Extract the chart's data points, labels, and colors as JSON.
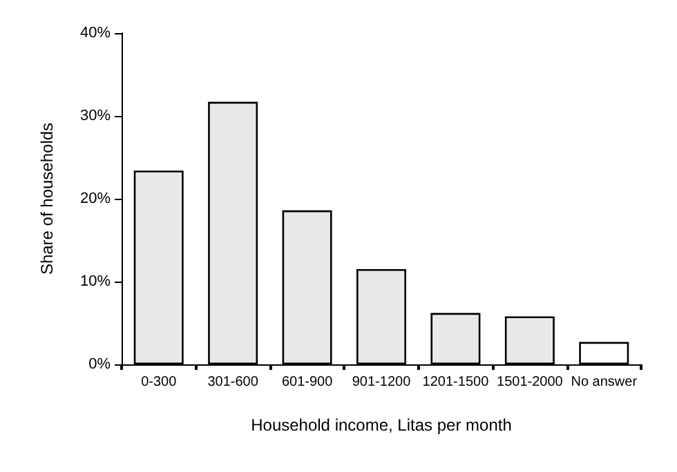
{
  "chart_data": {
    "type": "bar",
    "xlabel": "Household income, Litas per month",
    "ylabel": "Share of households",
    "categories": [
      "0-300",
      "301-600",
      "601-900",
      "901-1200",
      "1201-1500",
      "1501-2000",
      "No answer"
    ],
    "values": [
      23.4,
      31.7,
      18.6,
      11.5,
      6.2,
      5.8,
      2.7
    ],
    "colors": [
      "#e8e8e8",
      "#e8e8e8",
      "#e8e8e8",
      "#e8e8e8",
      "#e8e8e8",
      "#e8e8e8",
      "#ffffff"
    ],
    "ylim": [
      0,
      40
    ],
    "yticks": [
      {
        "value": 0,
        "label": "0%"
      },
      {
        "value": 10,
        "label": "10%"
      },
      {
        "value": 20,
        "label": "20%"
      },
      {
        "value": 30,
        "label": "30%"
      },
      {
        "value": 40,
        "label": "40%"
      }
    ],
    "grid": false
  }
}
